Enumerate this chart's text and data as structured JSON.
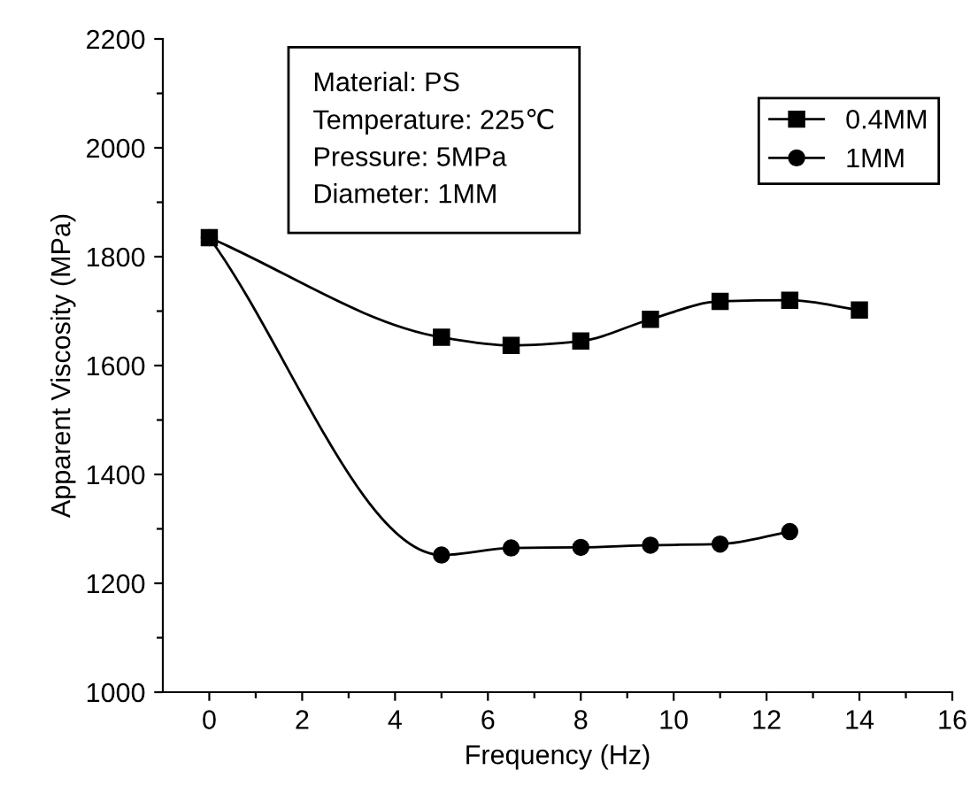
{
  "chart_data": {
    "type": "line",
    "xlabel": "Frequency (Hz)",
    "ylabel": "Apparent Viscosity (MPa)",
    "xlim": [
      -1,
      16
    ],
    "ylim": [
      1000,
      2200
    ],
    "xticks": [
      0,
      {
        "value": 1,
        "label": null
      },
      2,
      {
        "value": 3,
        "label": null
      },
      4,
      {
        "value": 5,
        "label": null
      },
      6,
      {
        "value": 7,
        "label": null
      },
      8,
      {
        "value": 9,
        "label": null
      },
      10,
      {
        "value": 11,
        "label": null
      },
      12,
      {
        "value": 13,
        "label": null
      },
      14,
      {
        "value": 15,
        "label": null
      },
      16
    ],
    "yticks": [
      1000,
      {
        "value": 1100,
        "label": null
      },
      1200,
      {
        "value": 1300,
        "label": null
      },
      1400,
      {
        "value": 1500,
        "label": null
      },
      1600,
      {
        "value": 1700,
        "label": null
      },
      1800,
      {
        "value": 1900,
        "label": null
      },
      2000,
      {
        "value": 2100,
        "label": null
      },
      2200
    ],
    "annotations": [
      "Material: PS",
      "Temperature: 225℃",
      "Pressure: 5MPa",
      "Diameter: 1MM"
    ],
    "legend": "top right",
    "grid": false,
    "series": [
      {
        "name": "0.4MM",
        "color": "#000000",
        "marker": "square",
        "x": [
          0,
          5,
          6.5,
          8,
          9.5,
          11,
          12.5,
          14
        ],
        "values": [
          1835,
          1652,
          1637,
          1645,
          1685,
          1718,
          1720,
          1702
        ]
      },
      {
        "name": "1MM",
        "color": "#000000",
        "marker": "circle",
        "x": [
          0,
          5,
          6.5,
          8,
          9.5,
          11,
          12.5
        ],
        "values": [
          1835,
          1252,
          1265,
          1266,
          1270,
          1272,
          1295
        ]
      }
    ]
  }
}
